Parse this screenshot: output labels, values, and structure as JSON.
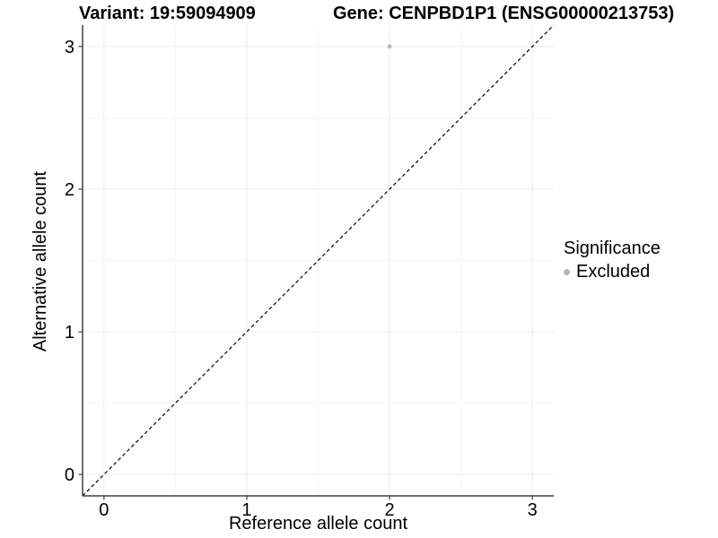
{
  "chart_data": {
    "type": "scatter",
    "titles": {
      "left": "Variant: 19:59094909",
      "right": "Gene: CENPBD1P1 (ENSG00000213753)"
    },
    "xlabel": "Reference allele count",
    "ylabel": "Alternative allele count",
    "xlim": [
      -0.15,
      3.15
    ],
    "ylim": [
      -0.15,
      3.15
    ],
    "xticks": [
      0,
      1,
      2,
      3
    ],
    "yticks": [
      0,
      1,
      2,
      3
    ],
    "minor_gridlines": [
      0.5,
      1.5,
      2.5
    ],
    "grid": "major+minor",
    "identity_line": {
      "style": "dashed",
      "color": "#000000",
      "from": [
        -0.15,
        -0.15
      ],
      "to": [
        3.15,
        3.15
      ]
    },
    "series": [
      {
        "name": "Excluded",
        "color": "#bdbdbd",
        "point_radius": 2.5,
        "points": [
          [
            2,
            3
          ]
        ]
      }
    ],
    "legend": {
      "title": "Significance",
      "position": "right",
      "items": [
        {
          "label": "Excluded",
          "color": "#b5b5b5"
        }
      ]
    },
    "colors": {
      "background": "#ffffff",
      "grid_major": "#ebebeb",
      "grid_minor": "#f5f5f5",
      "axis_line": "#404040",
      "tick_mark": "#404040",
      "tick_label": "#000000"
    }
  }
}
